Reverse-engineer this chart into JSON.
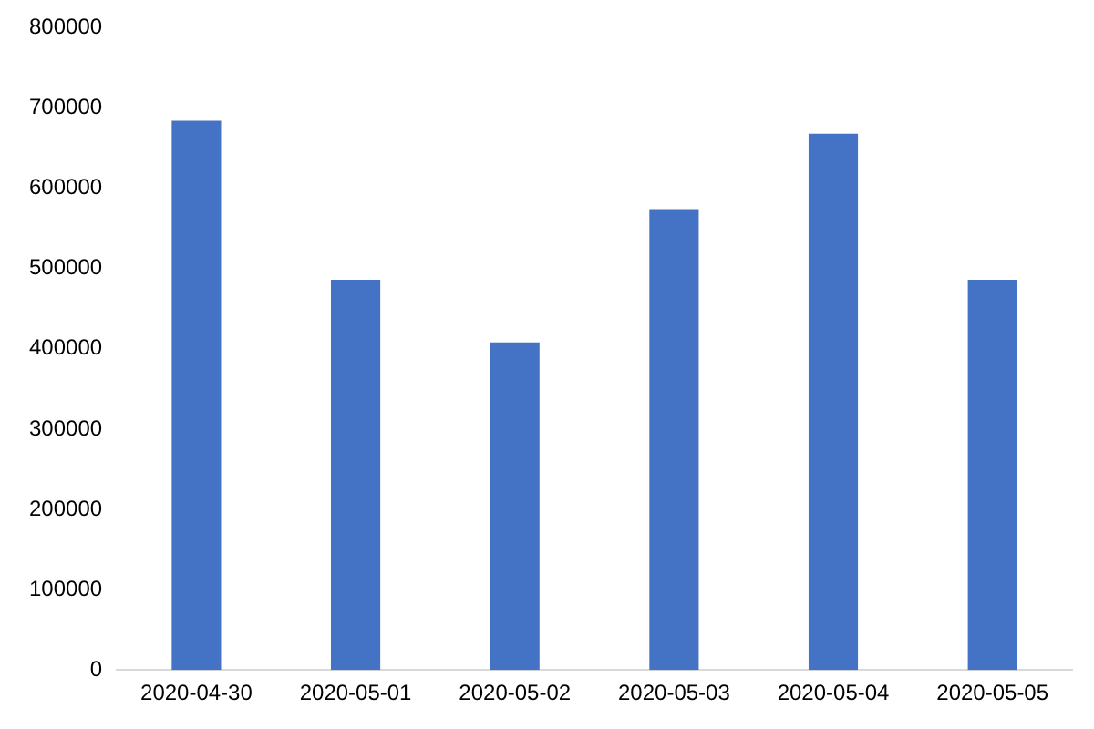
{
  "chart_data": {
    "type": "bar",
    "categories": [
      "2020-04-30",
      "2020-05-01",
      "2020-05-02",
      "2020-05-03",
      "2020-05-04",
      "2020-05-05"
    ],
    "values": [
      684000,
      486000,
      408000,
      574000,
      668000,
      486000
    ],
    "color": "#4472c4",
    "ylim": [
      0,
      800000
    ],
    "yticks": [
      0,
      100000,
      200000,
      300000,
      400000,
      500000,
      600000,
      700000,
      800000
    ],
    "grid": false,
    "legend": false
  }
}
